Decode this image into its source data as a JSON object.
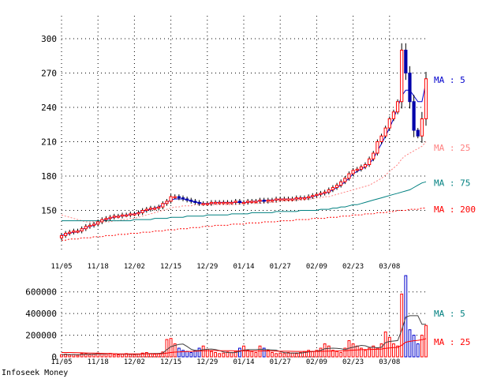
{
  "footer": "Infoseek Money",
  "chart_data": [
    {
      "type": "candlestick",
      "panel": "price",
      "y_ticks": [
        150,
        180,
        210,
        240,
        270,
        300
      ],
      "ylim": [
        120,
        320
      ],
      "x_tick_labels": [
        "11/05",
        "11/18",
        "12/02",
        "12/15",
        "12/29",
        "01/14",
        "01/27",
        "02/09",
        "02/23",
        "03/08"
      ],
      "x_tick_index": [
        0,
        9,
        18,
        27,
        36,
        45,
        54,
        63,
        72,
        81
      ],
      "num_periods": 91,
      "close": [
        128,
        130,
        131,
        132,
        132,
        134,
        136,
        137,
        138,
        140,
        142,
        143,
        144,
        145,
        145,
        146,
        146,
        147,
        147,
        148,
        150,
        151,
        152,
        152,
        153,
        156,
        158,
        162,
        162,
        161,
        160,
        159,
        158,
        157,
        156,
        156,
        156,
        157,
        157,
        157,
        157,
        157,
        157,
        158,
        157,
        157,
        158,
        158,
        158,
        159,
        158,
        159,
        159,
        160,
        160,
        160,
        160,
        160,
        161,
        161,
        161,
        162,
        163,
        164,
        165,
        166,
        168,
        170,
        172,
        175,
        178,
        182,
        185,
        186,
        188,
        190,
        195,
        200,
        210,
        215,
        222,
        230,
        236,
        245,
        290,
        270,
        245,
        220,
        215,
        230,
        265
      ],
      "series": [
        {
          "name": "MA : 5",
          "color": "#0000cc",
          "period": 5,
          "style": "solid"
        },
        {
          "name": "MA : 25",
          "color": "#ff8080",
          "period": 25,
          "style": "dashed"
        },
        {
          "name": "MA : 75",
          "color": "#008080",
          "period": 75,
          "style": "solid"
        },
        {
          "name": "MA : 200",
          "color": "#ff0000",
          "period": 200,
          "style": "dashed"
        }
      ],
      "ma_values": {
        "MA : 5": [
          128,
          129,
          130,
          131,
          131,
          133,
          135,
          136,
          137,
          139,
          141,
          142,
          143,
          144,
          145,
          145,
          146,
          146,
          147,
          148,
          149,
          150,
          151,
          152,
          153,
          155,
          157,
          159,
          160,
          160,
          160,
          159,
          158,
          157,
          157,
          156,
          156,
          156,
          157,
          157,
          157,
          157,
          157,
          157,
          157,
          157,
          157,
          158,
          158,
          158,
          158,
          159,
          159,
          159,
          160,
          160,
          160,
          160,
          160,
          161,
          161,
          161,
          162,
          163,
          164,
          165,
          166,
          168,
          170,
          172,
          175,
          178,
          182,
          184,
          186,
          188,
          191,
          195,
          202,
          208,
          215,
          222,
          230,
          240,
          250,
          255,
          255,
          250,
          245,
          245,
          262
        ],
        "MA : 25": [
          146,
          145,
          144,
          143,
          142,
          141,
          140,
          140,
          140,
          140,
          140,
          140,
          140,
          141,
          141,
          142,
          142,
          143,
          143,
          144,
          145,
          146,
          147,
          148,
          149,
          150,
          151,
          152,
          153,
          153,
          154,
          154,
          154,
          155,
          155,
          155,
          155,
          155,
          155,
          155,
          155,
          155,
          155,
          155,
          156,
          156,
          156,
          156,
          156,
          156,
          157,
          157,
          157,
          157,
          158,
          158,
          158,
          158,
          159,
          159,
          159,
          160,
          160,
          161,
          161,
          162,
          162,
          163,
          164,
          165,
          166,
          167,
          168,
          169,
          170,
          171,
          172,
          174,
          176,
          178,
          181,
          184,
          187,
          190,
          195,
          198,
          200,
          202,
          204,
          206,
          210
        ],
        "MA : 75": [
          141,
          141,
          141,
          141,
          141,
          141,
          141,
          141,
          141,
          141,
          141,
          141,
          141,
          141,
          141,
          141,
          141,
          141,
          142,
          142,
          142,
          142,
          142,
          143,
          143,
          143,
          143,
          144,
          144,
          144,
          144,
          145,
          145,
          145,
          145,
          145,
          146,
          146,
          146,
          146,
          146,
          146,
          147,
          147,
          147,
          147,
          147,
          148,
          148,
          148,
          148,
          148,
          148,
          149,
          149,
          149,
          149,
          149,
          149,
          150,
          150,
          150,
          150,
          150,
          151,
          151,
          151,
          152,
          152,
          153,
          153,
          154,
          155,
          155,
          156,
          157,
          158,
          159,
          160,
          161,
          162,
          163,
          164,
          165,
          166,
          167,
          168,
          170,
          172,
          174,
          175
        ],
        "MA : 200": [
          124,
          124,
          125,
          125,
          125,
          126,
          126,
          126,
          127,
          127,
          127,
          128,
          128,
          128,
          129,
          129,
          129,
          130,
          130,
          130,
          131,
          131,
          131,
          132,
          132,
          132,
          133,
          133,
          133,
          134,
          134,
          134,
          135,
          135,
          135,
          136,
          136,
          136,
          137,
          137,
          137,
          137,
          138,
          138,
          138,
          138,
          139,
          139,
          139,
          139,
          140,
          140,
          140,
          140,
          141,
          141,
          141,
          141,
          142,
          142,
          142,
          142,
          143,
          143,
          143,
          143,
          144,
          144,
          144,
          145,
          145,
          145,
          146,
          146,
          146,
          147,
          147,
          147,
          148,
          148,
          148,
          149,
          149,
          150,
          150,
          150,
          151,
          151,
          151,
          152,
          152
        ]
      }
    },
    {
      "type": "bar",
      "panel": "volume",
      "y_ticks": [
        0,
        200000,
        400000,
        600000
      ],
      "y_tick_labels": [
        "0",
        "200000",
        "400000",
        "600000"
      ],
      "ylim": [
        0,
        780000
      ],
      "num_periods": 91,
      "values": [
        20000,
        25000,
        18000,
        22000,
        15000,
        30000,
        28000,
        20000,
        25000,
        35000,
        30000,
        28000,
        32000,
        20000,
        18000,
        25000,
        30000,
        22000,
        20000,
        25000,
        35000,
        40000,
        30000,
        25000,
        30000,
        45000,
        160000,
        170000,
        120000,
        80000,
        60000,
        50000,
        40000,
        60000,
        80000,
        100000,
        70000,
        50000,
        40000,
        30000,
        35000,
        45000,
        40000,
        50000,
        80000,
        100000,
        60000,
        50000,
        40000,
        100000,
        80000,
        60000,
        40000,
        30000,
        35000,
        30000,
        40000,
        35000,
        30000,
        40000,
        50000,
        60000,
        50000,
        60000,
        80000,
        120000,
        100000,
        60000,
        50000,
        40000,
        80000,
        150000,
        120000,
        100000,
        80000,
        60000,
        80000,
        100000,
        80000,
        120000,
        230000,
        180000,
        120000,
        100000,
        580000,
        750000,
        250000,
        200000,
        120000,
        200000,
        290000
      ],
      "series": [
        {
          "name": "MA : 5",
          "color": "#404040"
        },
        {
          "name": "MA : 25",
          "color": "#ff0000"
        }
      ],
      "ma_values": {
        "MA : 5": [
          20000,
          22000,
          21000,
          21000,
          20000,
          22000,
          23000,
          23000,
          24000,
          27000,
          28000,
          28000,
          30000,
          29000,
          26000,
          25000,
          25000,
          23000,
          23000,
          24000,
          27000,
          29000,
          30000,
          31000,
          32000,
          35000,
          66000,
          94000,
          105000,
          115000,
          118000,
          96000,
          70000,
          58000,
          58000,
          66000,
          70000,
          72000,
          68000,
          58000,
          45000,
          40000,
          38000,
          40000,
          50000,
          63000,
          66000,
          66000,
          66000,
          70000,
          66000,
          66000,
          64000,
          62000,
          49000,
          39000,
          36000,
          34000,
          36000,
          35000,
          39000,
          46000,
          48000,
          52000,
          60000,
          74000,
          78000,
          80000,
          78000,
          74000,
          66000,
          80000,
          88000,
          98000,
          106000,
          102000,
          88000,
          88000,
          84000,
          88000,
          132000,
          142000,
          146000,
          150000,
          246000,
          366000,
          380000,
          380000,
          380000,
          300000,
          300000
        ],
        "MA : 25": [
          40000,
          40000,
          40000,
          39000,
          38000,
          37000,
          36000,
          35000,
          34000,
          33000,
          32000,
          31000,
          30000,
          29000,
          28000,
          27000,
          27000,
          27000,
          27000,
          27000,
          27000,
          27000,
          28000,
          28000,
          28000,
          29000,
          34000,
          40000,
          44000,
          46000,
          48000,
          49000,
          50000,
          52000,
          54000,
          56000,
          57000,
          58000,
          58000,
          57000,
          56000,
          56000,
          56000,
          55000,
          55000,
          56000,
          55000,
          54000,
          54000,
          55000,
          55000,
          55000,
          54000,
          53000,
          52000,
          52000,
          52000,
          51000,
          50000,
          50000,
          49000,
          49000,
          50000,
          50000,
          51000,
          52000,
          53000,
          54000,
          55000,
          55000,
          56000,
          59000,
          62000,
          64000,
          66000,
          67000,
          68000,
          69000,
          70000,
          72000,
          78000,
          82000,
          85000,
          87000,
          107000,
          135000,
          143000,
          149000,
          152000,
          158000,
          168000
        ]
      }
    }
  ]
}
